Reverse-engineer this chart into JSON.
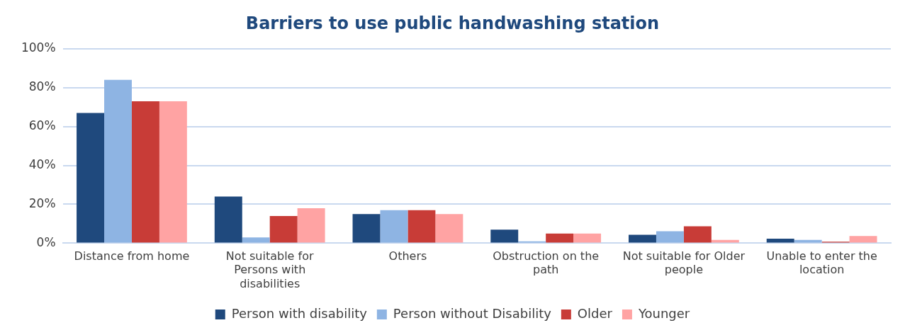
{
  "chart_data": {
    "type": "bar",
    "title": "Barriers to use public handwashing station",
    "categories": [
      "Distance from home",
      "Not suitable for Persons with disabilities",
      "Others",
      "Obstruction on the path",
      "Not suitable for Older people",
      "Unable to enter the location"
    ],
    "series": [
      {
        "name": "Person with disability",
        "color": "#1f497d",
        "values": [
          67,
          24,
          15,
          7,
          4.3,
          2.3
        ]
      },
      {
        "name": "Person without Disability",
        "color": "#8eb4e3",
        "values": [
          84,
          3,
          17,
          1,
          6.2,
          1.7
        ]
      },
      {
        "name": "Older",
        "color": "#c83c37",
        "values": [
          73,
          14,
          17,
          5,
          8.7,
          0.8
        ]
      },
      {
        "name": "Younger",
        "color": "#ffa3a3",
        "values": [
          73,
          18,
          15,
          5,
          1.7,
          3.7
        ]
      }
    ],
    "ylim": [
      0,
      100
    ],
    "yticks": [
      {
        "value": 0,
        "label": "0%"
      },
      {
        "value": 20,
        "label": "20%"
      },
      {
        "value": 40,
        "label": "40%"
      },
      {
        "value": 60,
        "label": "60%"
      },
      {
        "value": 80,
        "label": "80%"
      },
      {
        "value": 100,
        "label": "100%"
      }
    ],
    "grid": "y",
    "legend": "bottom"
  }
}
